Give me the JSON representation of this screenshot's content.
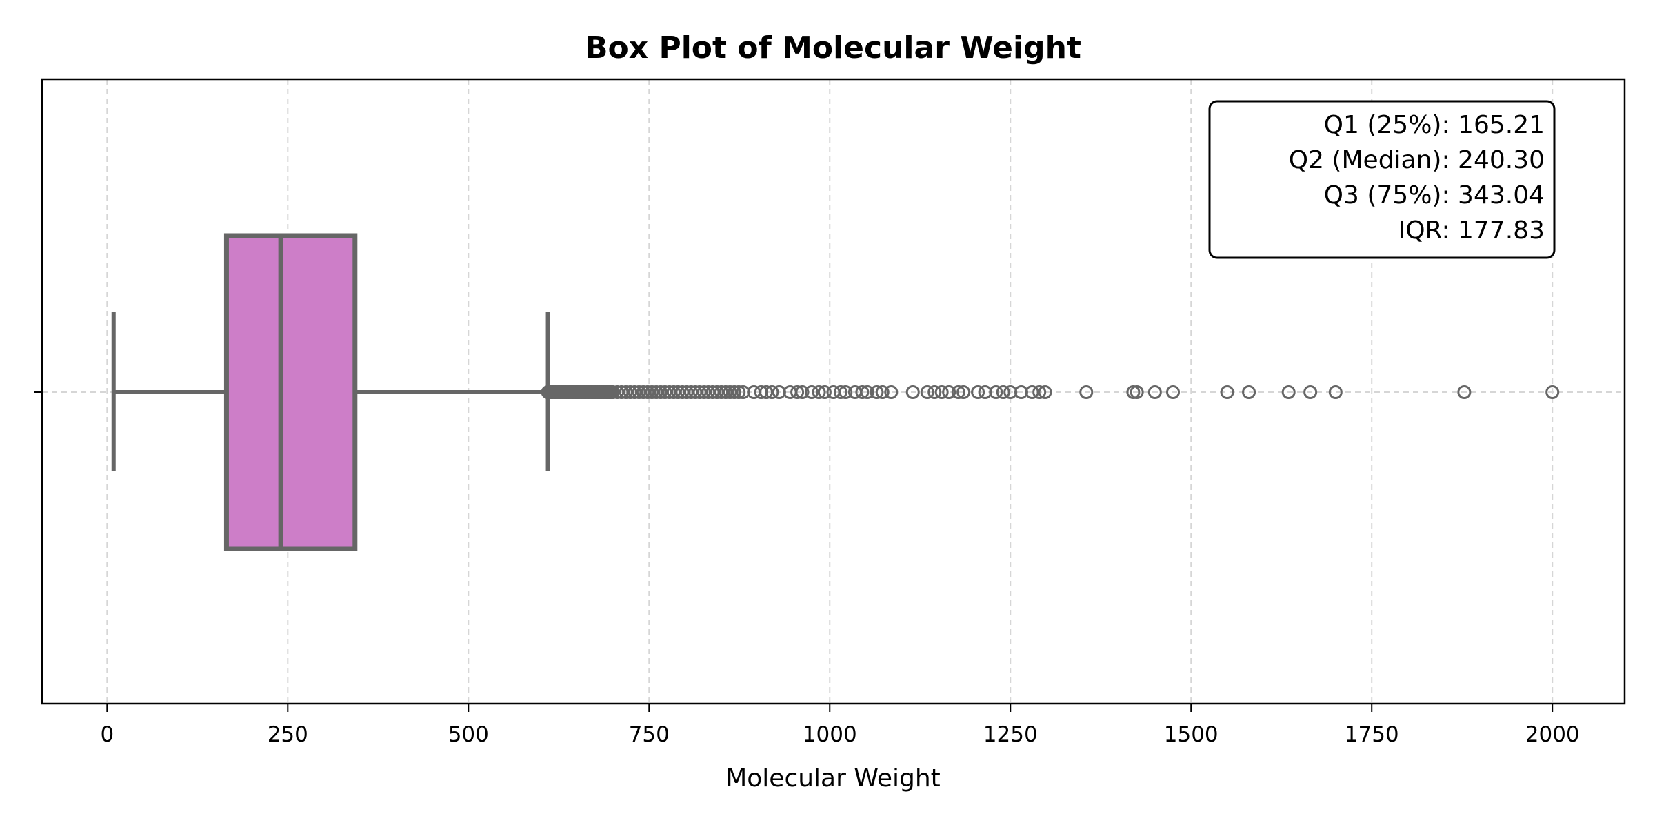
{
  "chart_data": {
    "type": "box",
    "title": "Box Plot of Molecular Weight",
    "xlabel": "Molecular Weight",
    "ylabel": "",
    "xlim": [
      -90,
      2100
    ],
    "xticks": [
      0,
      250,
      500,
      750,
      1000,
      1250,
      1500,
      1750,
      2000
    ],
    "grid": true,
    "box": {
      "whisker_low": 9,
      "q1": 165.21,
      "median": 240.3,
      "q3": 343.04,
      "whisker_high": 610,
      "fill_color": "#cd7ec8",
      "line_color": "#666666"
    },
    "outlier_dense_range": [
      610,
      880
    ],
    "outliers": [
      895,
      905,
      912,
      920,
      930,
      945,
      955,
      962,
      975,
      985,
      993,
      1005,
      1015,
      1022,
      1035,
      1045,
      1052,
      1065,
      1073,
      1085,
      1115,
      1135,
      1145,
      1155,
      1165,
      1178,
      1185,
      1205,
      1215,
      1230,
      1240,
      1250,
      1265,
      1280,
      1290,
      1298,
      1355,
      1420,
      1425,
      1450,
      1475,
      1550,
      1580,
      1635,
      1665,
      1700,
      1878,
      2000
    ],
    "stats_box": {
      "position": "top-right",
      "lines": [
        "Q1 (25%): 165.21",
        "Q2 (Median): 240.30",
        "Q3 (75%): 343.04",
        "IQR: 177.83"
      ]
    }
  }
}
